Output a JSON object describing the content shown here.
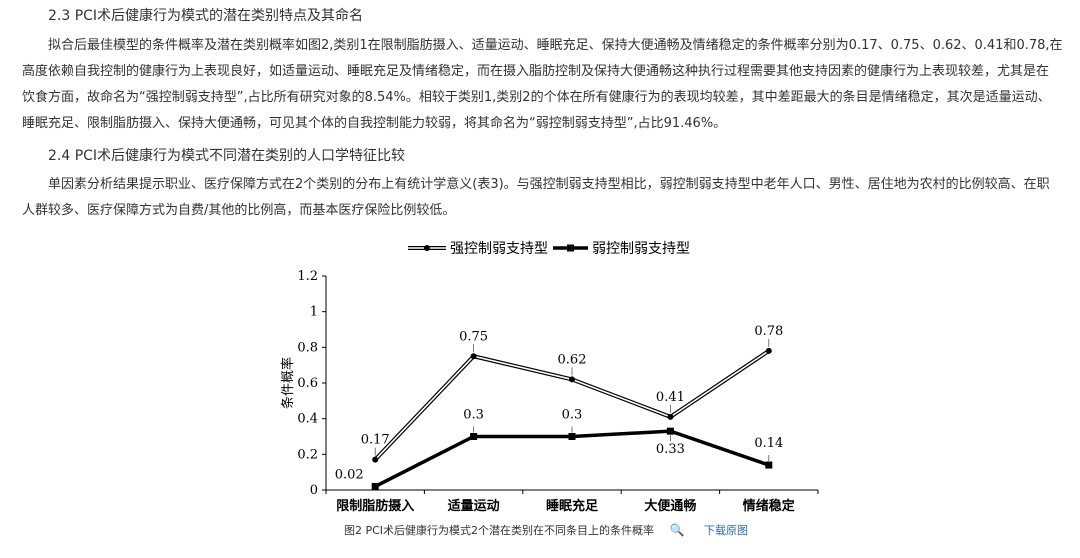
{
  "article": {
    "section_23_title": "2.3 PCI术后健康行为模式的潜在类别特点及其命名",
    "section_23_lines": [
      "拟合后最佳模型的条件概率及潜在类别概率如图2,类别1在限制脂肪摄入、适量运动、睡眠充足、保持大便通畅及情绪稳定的条件概率分别为0.17、0.75、0.62、0.41和0.78,在",
      "高度依赖自我控制的健康行为上表现良好，如适量运动、睡眠充足及情绪稳定，而在摄入脂肪控制及保持大便通畅这种执行过程需要其他支持因素的健康行为上表现较差，尤其是在",
      "饮食方面，故命名为“强控制弱支持型”,占比所有研究对象的8.54%。相较于类别1,类别2的个体在所有健康行为的表现均较差，其中差距最大的条目是情绪稳定，其次是适量运动、",
      "睡眠充足、限制脂肪摄入、保持大便通畅，可见其个体的自我控制能力较弱，将其命名为“弱控制弱支持型”,占比91.46%。"
    ],
    "section_24_title": "2.4 PCI术后健康行为模式不同潜在类别的人口学特征比较",
    "section_24_lines": [
      "单因素分析结果提示职业、医疗保障方式在2个类别的分布上有统计学意义(表3)。与强控制弱支持型相比，弱控制弱支持型中老年人口、男性、居住地为农村的比例较高、在职",
      "人群较多、医疗保障方式为自费/其他的比例高，而基本医疗保险比例较低。"
    ]
  },
  "figure": {
    "caption": "图2 PCI术后健康行为模式2个潜在类别在不同条目上的条件概率",
    "zoom_icon": "🔍",
    "download_label": "下载原图"
  },
  "chart_data": {
    "type": "line",
    "categories": [
      "限制脂肪摄入",
      "适量运动",
      "睡眠充足",
      "大便通畅",
      "情绪稳定"
    ],
    "series": [
      {
        "name": "强控制弱支持型",
        "values": [
          0.17,
          0.75,
          0.62,
          0.41,
          0.78
        ],
        "labels": [
          "0.17",
          "0.75",
          "0.62",
          "0.41",
          "0.78"
        ],
        "style": "double-line-circle"
      },
      {
        "name": "弱控制弱支持型",
        "values": [
          0.02,
          0.3,
          0.3,
          0.33,
          0.14
        ],
        "labels": [
          "0.02",
          "0.3",
          "0.3",
          "0.33",
          "0.14"
        ],
        "style": "thick-line-square"
      }
    ],
    "ylabel": "条件概率",
    "xlabel": "",
    "ylim": [
      0,
      1.2
    ],
    "yticks": [
      "0",
      "0.2",
      "0.4",
      "0.6",
      "0.8",
      "1",
      "1.2"
    ],
    "grid": false,
    "legend_position": "top-center"
  }
}
